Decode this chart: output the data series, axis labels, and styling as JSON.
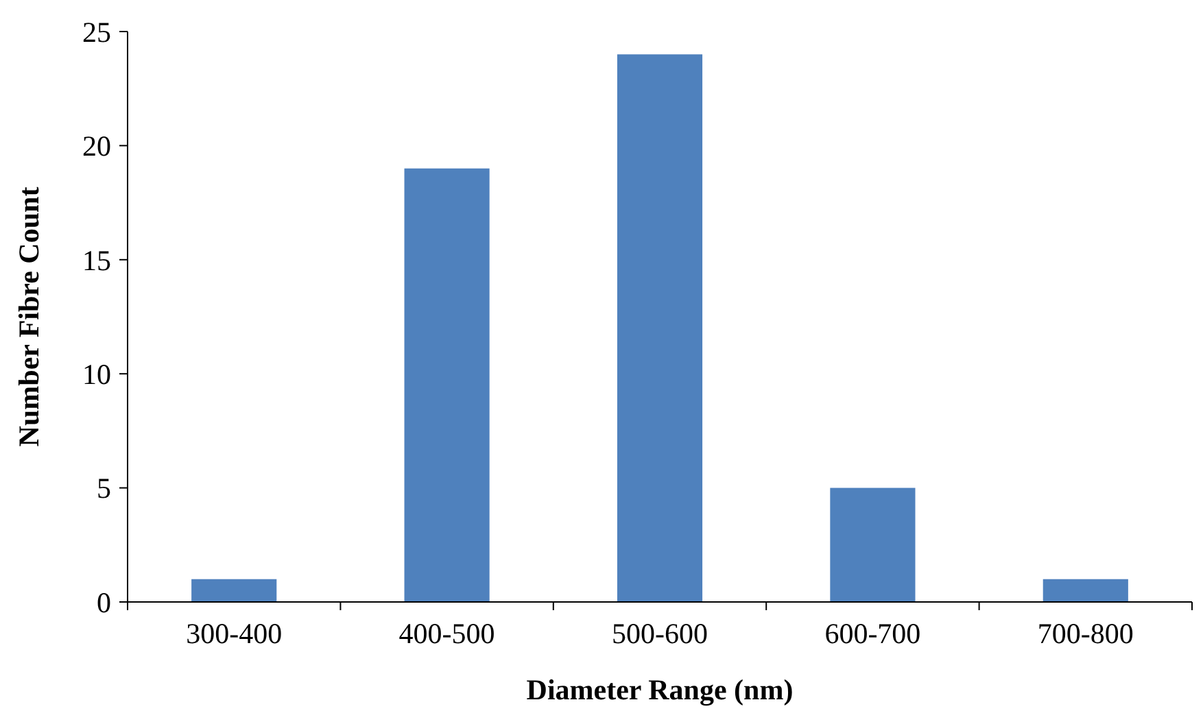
{
  "chart_data": {
    "type": "bar",
    "xlabel": "Diameter Range (nm)",
    "ylabel": "Number Fibre Count",
    "categories": [
      "300-400",
      "400-500",
      "500-600",
      "600-700",
      "700-800"
    ],
    "values": [
      1,
      19,
      24,
      5,
      1
    ],
    "color": "#4f81bd",
    "ylim": [
      0,
      25
    ],
    "yticks": [
      0,
      5,
      10,
      15,
      20,
      25
    ],
    "grid": false
  }
}
